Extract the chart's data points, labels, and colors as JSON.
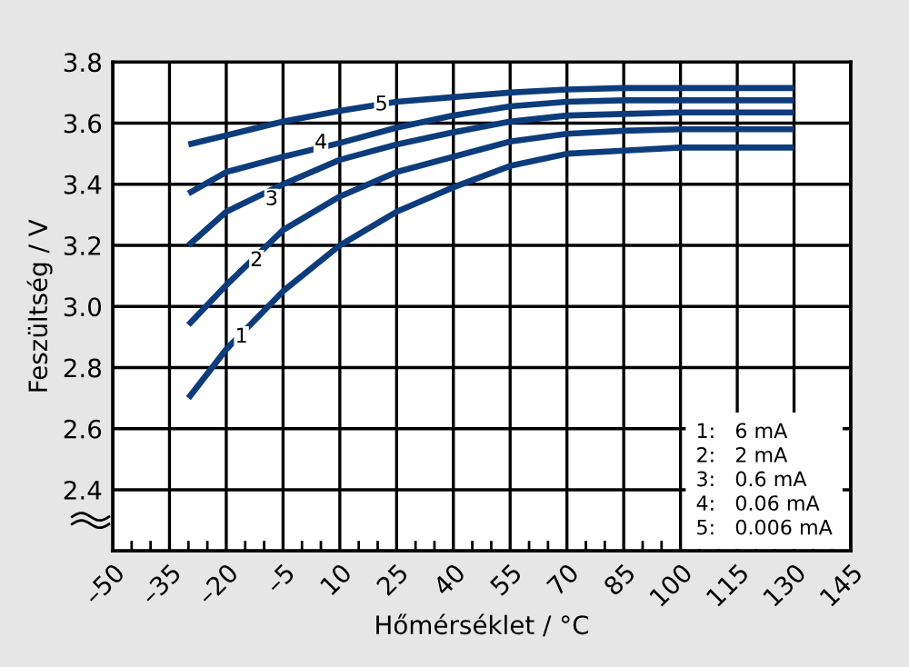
{
  "chart_data": {
    "type": "line",
    "xlabel": "Hőmérséklet / °C",
    "ylabel": "Feszültség / V",
    "xlim": [
      -50,
      145
    ],
    "xticks": [
      {
        "value": -50,
        "label": "–50"
      },
      {
        "value": -35,
        "label": "–35"
      },
      {
        "value": -20,
        "label": "–20"
      },
      {
        "value": -5,
        "label": "–5"
      },
      10,
      25,
      40,
      55,
      70,
      85,
      100,
      115,
      130,
      145
    ],
    "ylim": [
      2.2,
      3.8
    ],
    "yticks": [
      {
        "value": 2.2,
        "label": null
      },
      2.4,
      2.6,
      2.8,
      {
        "value": 3.0,
        "label": "3.0"
      },
      3.2,
      3.4,
      3.6,
      3.8
    ],
    "grid": true,
    "marker": "none",
    "line_style": "solid",
    "x": [
      -30,
      -20,
      -5,
      10,
      25,
      40,
      55,
      70,
      85,
      100,
      115,
      130
    ],
    "series": [
      {
        "color": "#0d3c7c",
        "values": [
          2.7,
          2.86,
          3.05,
          3.2,
          3.31,
          3.39,
          3.46,
          3.5,
          3.51,
          3.52,
          3.52,
          3.52
        ]
      },
      {
        "color": "#0d3c7c",
        "values": [
          2.94,
          3.07,
          3.25,
          3.36,
          3.44,
          3.49,
          3.54,
          3.565,
          3.575,
          3.58,
          3.58,
          3.58
        ]
      },
      {
        "color": "#0d3c7c",
        "values": [
          3.2,
          3.31,
          3.4,
          3.48,
          3.53,
          3.57,
          3.605,
          3.625,
          3.63,
          3.635,
          3.635,
          3.635
        ]
      },
      {
        "color": "#0d3c7c",
        "values": [
          3.37,
          3.44,
          3.49,
          3.535,
          3.585,
          3.625,
          3.655,
          3.67,
          3.675,
          3.675,
          3.675,
          3.675
        ]
      },
      {
        "color": "#0d3c7c",
        "values": [
          3.53,
          3.56,
          3.605,
          3.64,
          3.67,
          3.685,
          3.7,
          3.71,
          3.715,
          3.715,
          3.715,
          3.715
        ]
      }
    ],
    "annotations": [
      {
        "text": "1",
        "x": -16,
        "y": 2.9
      },
      {
        "text": "2",
        "x": -12,
        "y": 3.15
      },
      {
        "text": "3",
        "x": -8,
        "y": 3.35
      },
      {
        "text": "4",
        "x": 5,
        "y": 3.535
      },
      {
        "text": "5",
        "x": 21,
        "y": 3.66
      },
      "1:   6 mA",
      "2:   2 mA",
      "3:   0.6 mA",
      "4:   0.06 mA",
      "5:   0.006 mA"
    ]
  }
}
